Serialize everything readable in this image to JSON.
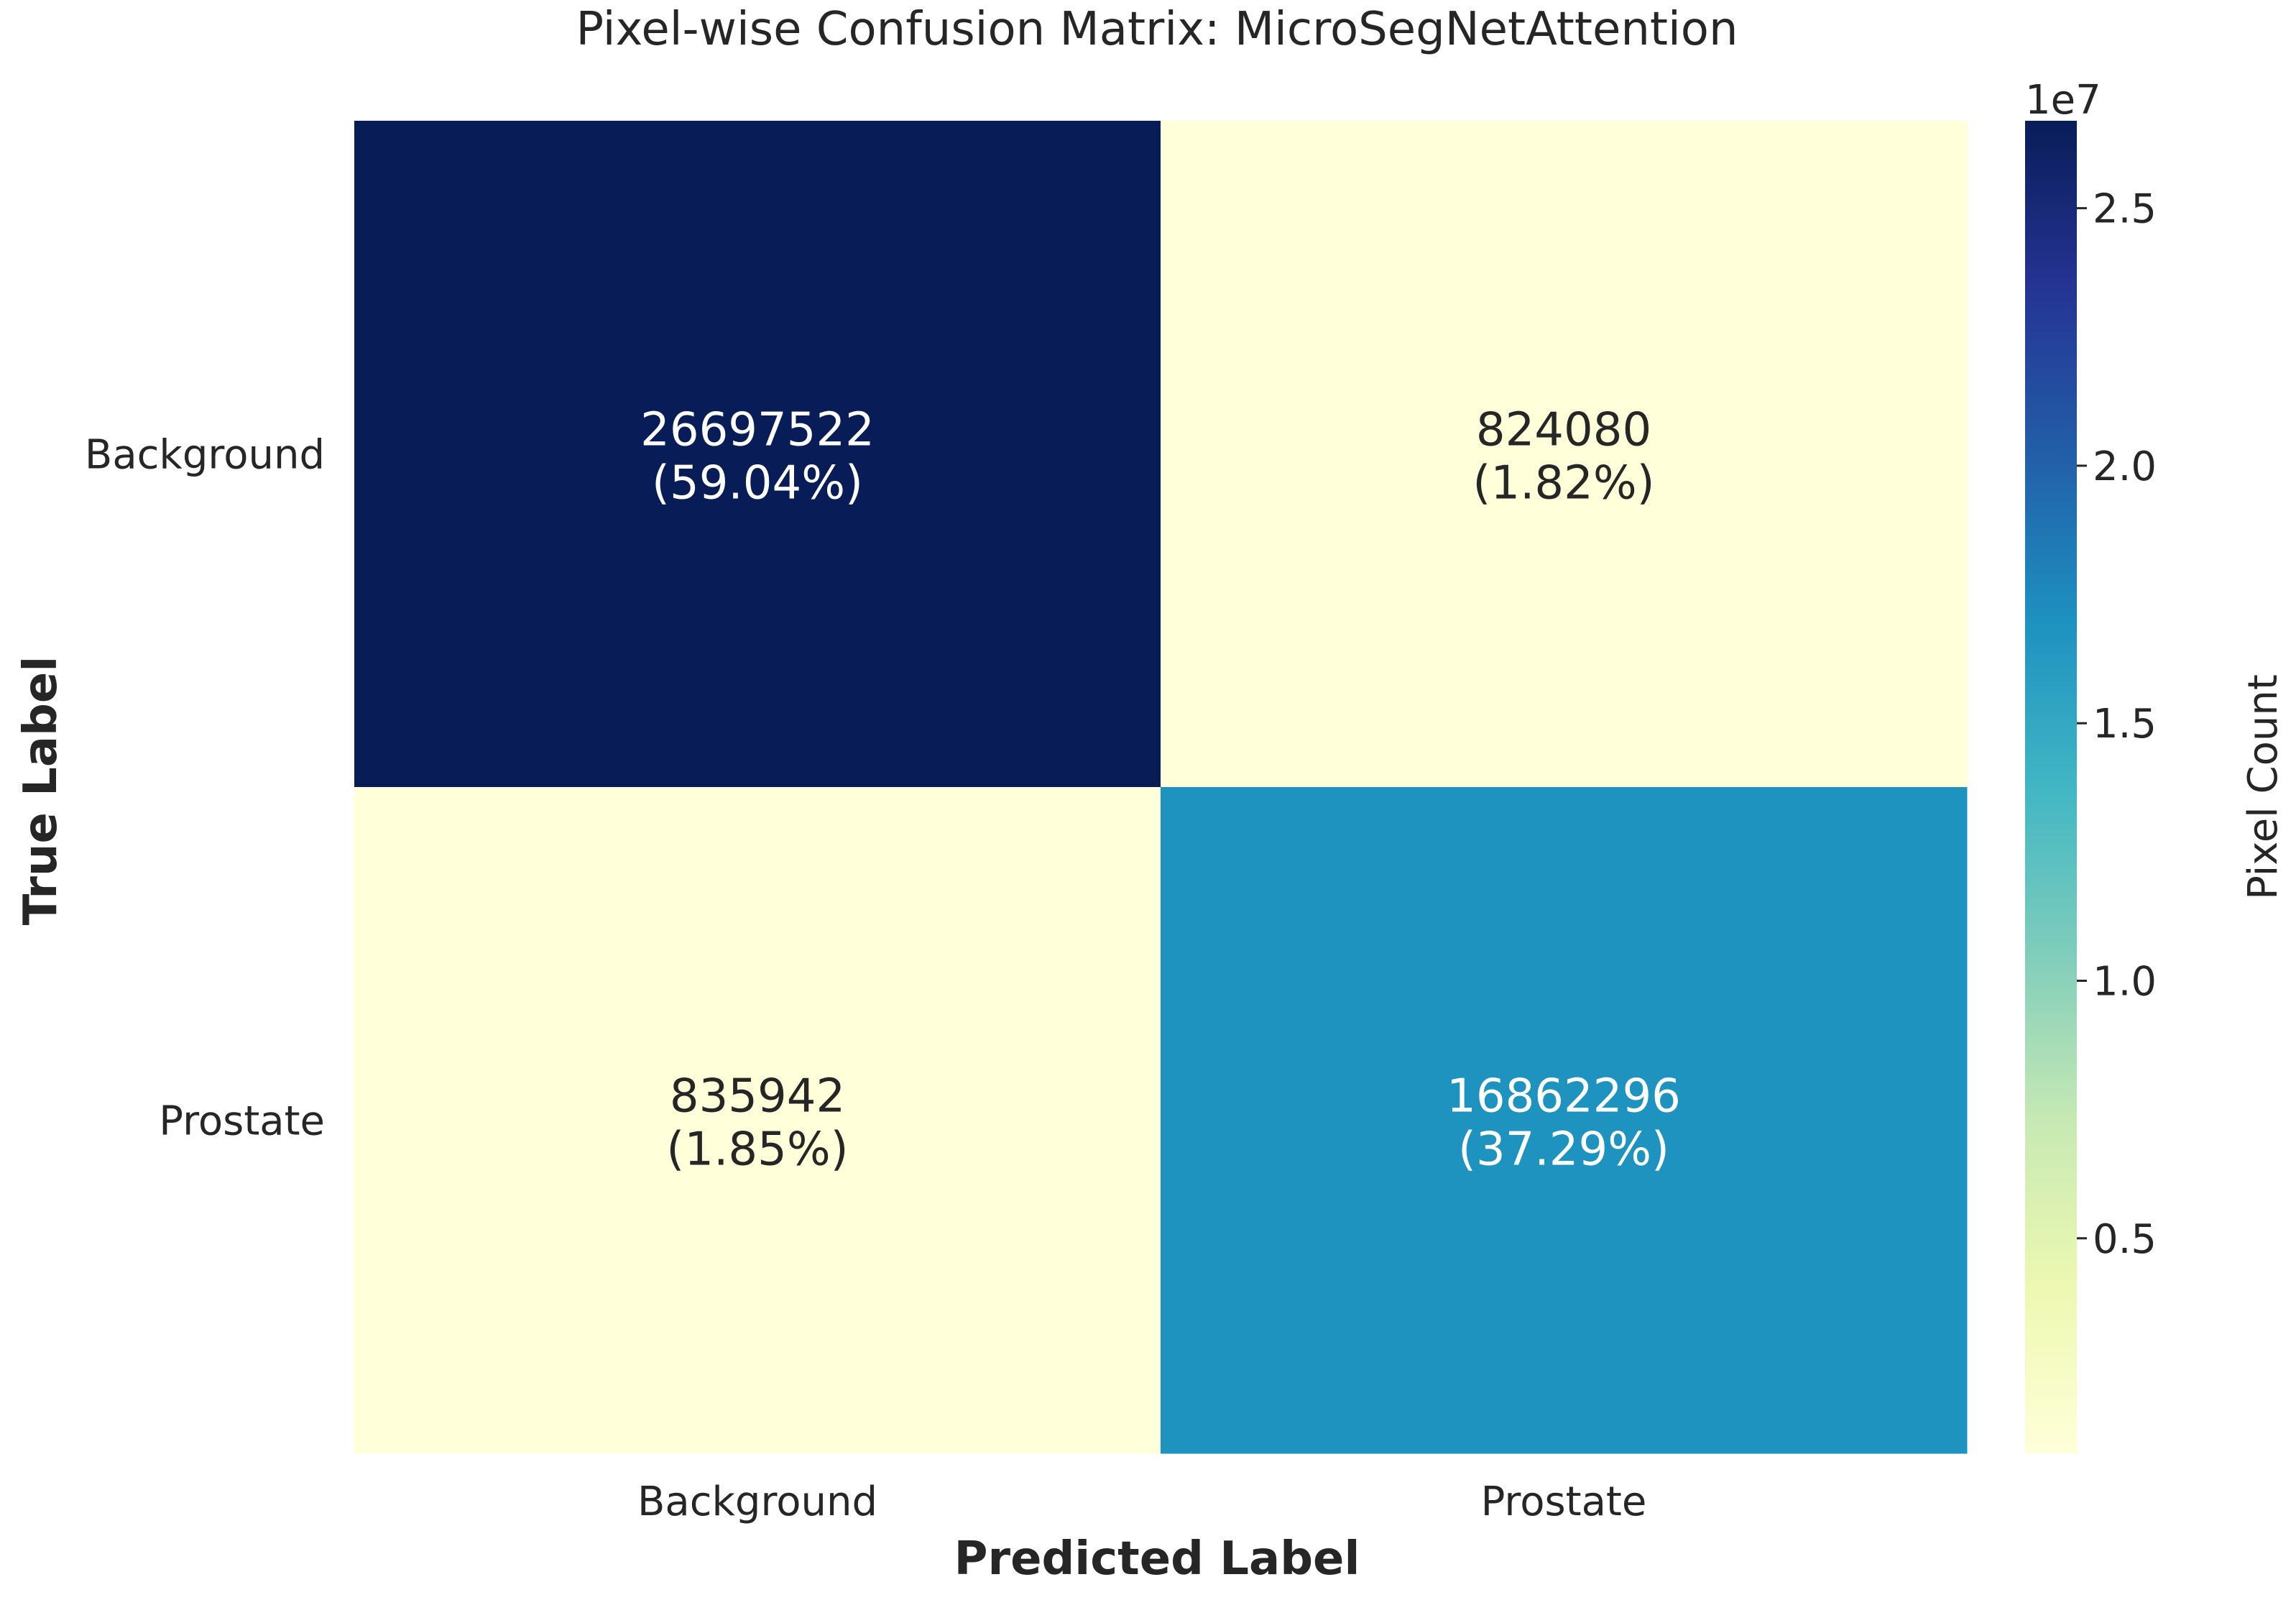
{
  "chart_data": {
    "type": "heatmap",
    "title": "Pixel-wise Confusion Matrix: MicroSegNetAttention",
    "xlabel": "Predicted Label",
    "ylabel": "True Label",
    "x_categories": [
      "Background",
      "Prostate"
    ],
    "y_categories": [
      "Background",
      "Prostate"
    ],
    "values": [
      [
        26697522,
        824080
      ],
      [
        835942,
        16862296
      ]
    ],
    "cell_labels": [
      [
        "26697522\n(59.04%)",
        "824080\n(1.82%)"
      ],
      [
        "835942\n(1.85%)",
        "16862296\n(37.29%)"
      ]
    ],
    "colorbar": {
      "label": "Pixel Count",
      "multiplier_label": "1e7",
      "ticks": [
        0.5,
        1.0,
        1.5,
        2.0,
        2.5
      ],
      "tick_labels": [
        "0.5",
        "1.0",
        "1.5",
        "2.0",
        "2.5"
      ],
      "range": [
        0.082408,
        2.6697522
      ],
      "colormap": "YlGnBu",
      "colors": [
        "#ffffd9",
        "#edf8b1",
        "#c7e9b4",
        "#7fcdbb",
        "#41b6c4",
        "#1d91c0",
        "#225ea8",
        "#253494",
        "#081d58"
      ]
    }
  }
}
